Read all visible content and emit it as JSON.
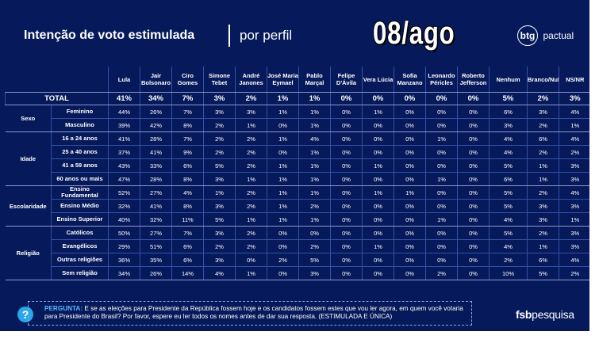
{
  "header": {
    "title": "Intenção de voto estimulada",
    "subtitle": "por perfil",
    "date": "08/ago",
    "brand_btg_mark": "btg",
    "brand_btg_word": "pactual"
  },
  "table": {
    "columns": [
      "Lula",
      "Jair Bolsonaro",
      "Ciro Gomes",
      "Simone Tebet",
      "André Janones",
      "José Maria Eymael",
      "Pablo Marçal",
      "Felipe D'Ávila",
      "Vera Lúcia",
      "Sofia Manzano",
      "Leonardo Péricles",
      "Roberto Jefferson",
      "Nenhum",
      "Branco/Nulo",
      "NS/NR"
    ],
    "total_label": "TOTAL",
    "total": [
      "41%",
      "34%",
      "7%",
      "3%",
      "2%",
      "1%",
      "1%",
      "0%",
      "0%",
      "0%",
      "0%",
      "0%",
      "5%",
      "2%",
      "3%"
    ],
    "groups": [
      {
        "name": "Sexo",
        "rows": [
          {
            "label": "Feminino",
            "values": [
              "44%",
              "26%",
              "7%",
              "3%",
              "3%",
              "1%",
              "1%",
              "0%",
              "1%",
              "0%",
              "0%",
              "0%",
              "6%",
              "3%",
              "4%"
            ]
          },
          {
            "label": "Masculino",
            "values": [
              "39%",
              "42%",
              "8%",
              "2%",
              "1%",
              "0%",
              "1%",
              "0%",
              "0%",
              "0%",
              "0%",
              "0%",
              "3%",
              "2%",
              "1%"
            ]
          }
        ]
      },
      {
        "name": "Idade",
        "rows": [
          {
            "label": "16 a 24 anos",
            "values": [
              "41%",
              "28%",
              "7%",
              "2%",
              "2%",
              "1%",
              "4%",
              "0%",
              "0%",
              "0%",
              "1%",
              "0%",
              "4%",
              "6%",
              "4%"
            ]
          },
          {
            "label": "25 a 40 anos",
            "values": [
              "37%",
              "41%",
              "9%",
              "2%",
              "2%",
              "0%",
              "1%",
              "0%",
              "0%",
              "0%",
              "0%",
              "0%",
              "4%",
              "2%",
              "2%"
            ]
          },
          {
            "label": "41 a 59 anos",
            "values": [
              "43%",
              "33%",
              "6%",
              "5%",
              "2%",
              "1%",
              "1%",
              "0%",
              "1%",
              "0%",
              "0%",
              "0%",
              "5%",
              "1%",
              "3%"
            ]
          },
          {
            "label": "60 anos ou mais",
            "values": [
              "47%",
              "28%",
              "8%",
              "3%",
              "1%",
              "1%",
              "1%",
              "0%",
              "0%",
              "0%",
              "1%",
              "0%",
              "6%",
              "1%",
              "3%"
            ]
          }
        ]
      },
      {
        "name": "Escolaridade",
        "rows": [
          {
            "label": "Ensino Fundamental",
            "values": [
              "52%",
              "27%",
              "4%",
              "1%",
              "2%",
              "1%",
              "1%",
              "0%",
              "1%",
              "1%",
              "0%",
              "0%",
              "5%",
              "2%",
              "4%"
            ]
          },
          {
            "label": "Ensino Médio",
            "values": [
              "32%",
              "41%",
              "8%",
              "3%",
              "2%",
              "1%",
              "2%",
              "0%",
              "0%",
              "0%",
              "0%",
              "0%",
              "5%",
              "3%",
              "3%"
            ]
          },
          {
            "label": "Ensino Superior",
            "values": [
              "40%",
              "32%",
              "11%",
              "5%",
              "1%",
              "1%",
              "1%",
              "0%",
              "0%",
              "0%",
              "1%",
              "0%",
              "4%",
              "3%",
              "1%"
            ]
          }
        ]
      },
      {
        "name": "Religião",
        "rows": [
          {
            "label": "Católicos",
            "values": [
              "50%",
              "27%",
              "7%",
              "3%",
              "2%",
              "0%",
              "0%",
              "0%",
              "0%",
              "0%",
              "0%",
              "0%",
              "5%",
              "2%",
              "3%"
            ]
          },
          {
            "label": "Evangélicos",
            "values": [
              "29%",
              "51%",
              "6%",
              "2%",
              "2%",
              "0%",
              "2%",
              "0%",
              "1%",
              "0%",
              "0%",
              "0%",
              "4%",
              "1%",
              "3%"
            ]
          },
          {
            "label": "Outras religiões",
            "values": [
              "36%",
              "35%",
              "6%",
              "3%",
              "0%",
              "2%",
              "5%",
              "0%",
              "0%",
              "0%",
              "0%",
              "0%",
              "2%",
              "6%",
              "4%"
            ]
          },
          {
            "label": "Sem religião",
            "values": [
              "34%",
              "26%",
              "14%",
              "4%",
              "1%",
              "0%",
              "3%",
              "0%",
              "0%",
              "0%",
              "2%",
              "0%",
              "10%",
              "5%",
              "2%"
            ]
          }
        ]
      }
    ]
  },
  "footer": {
    "question_icon": "?",
    "question_label": "PERGUNTA:",
    "question_text": " E se as eleições para Presidente da República fossem hoje e os candidatos fossem estes que vou ler agora, em quem você votaria para Presidente do Brasil? Por favor, espere eu ler todos os nomes antes de dar sua resposta. (ESTIMULADA E ÚNICA)",
    "brand_fsb_bold": "fsb",
    "brand_fsb_word": "pesquisa"
  },
  "colors": {
    "background": "#06195a",
    "accent": "#2aa7e8",
    "question_label": "#5ab6ff"
  }
}
